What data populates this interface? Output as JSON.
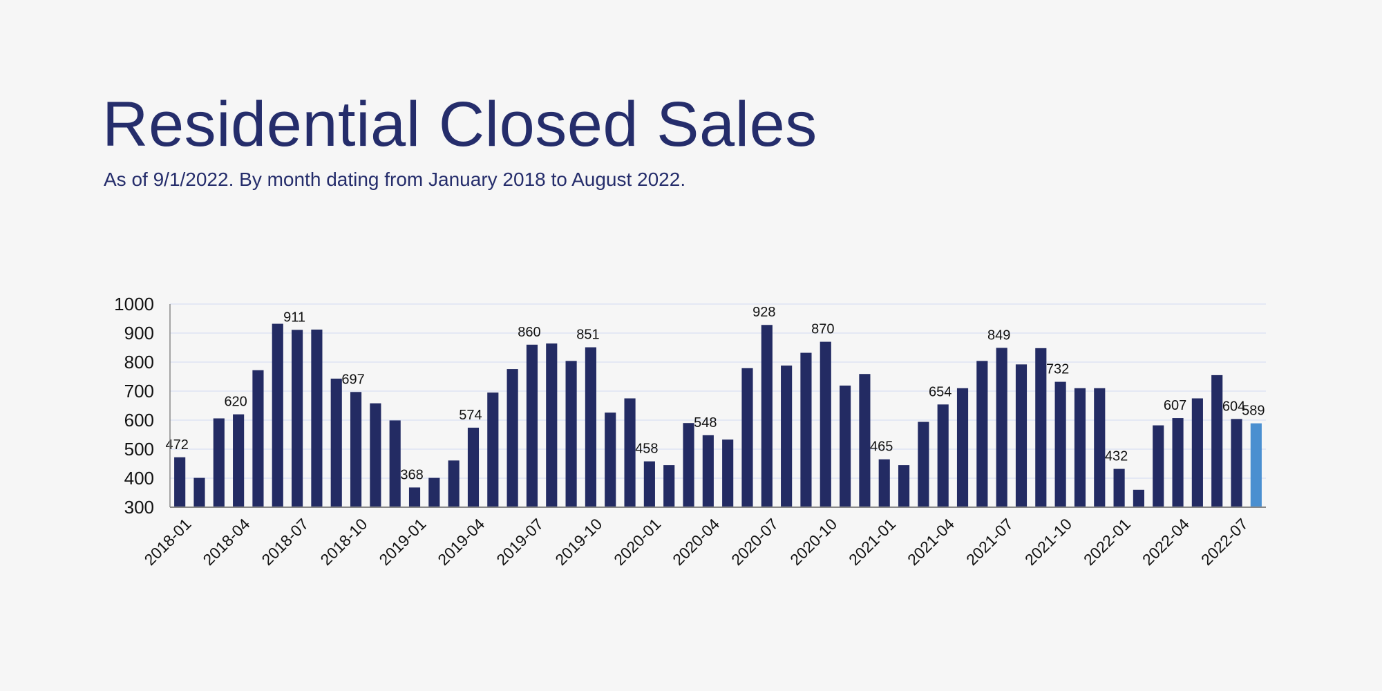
{
  "title": "Residential Closed Sales",
  "subtitle": "As of 9/1/2022. By month dating from January 2018 to August 2022.",
  "colors": {
    "bar": "#232b63",
    "highlight_bar": "#4a8fd0",
    "title": "#252d6b",
    "grid": "#dde3f3",
    "background": "#f6f6f6"
  },
  "chart_data": {
    "type": "bar",
    "title": "",
    "xlabel": "",
    "ylabel": "",
    "ylim": [
      300,
      1000
    ],
    "yticks": [
      300,
      400,
      500,
      600,
      700,
      800,
      900,
      1000
    ],
    "grid": true,
    "legend": "none",
    "categories": [
      "2018-01",
      "2018-02",
      "2018-03",
      "2018-04",
      "2018-05",
      "2018-06",
      "2018-07",
      "2018-08",
      "2018-09",
      "2018-10",
      "2018-11",
      "2018-12",
      "2019-01",
      "2019-02",
      "2019-03",
      "2019-04",
      "2019-05",
      "2019-06",
      "2019-07",
      "2019-08",
      "2019-09",
      "2019-10",
      "2019-11",
      "2019-12",
      "2020-01",
      "2020-02",
      "2020-03",
      "2020-04",
      "2020-05",
      "2020-06",
      "2020-07",
      "2020-08",
      "2020-09",
      "2020-10",
      "2020-11",
      "2020-12",
      "2021-01",
      "2021-02",
      "2021-03",
      "2021-04",
      "2021-05",
      "2021-06",
      "2021-07",
      "2021-08",
      "2021-09",
      "2021-10",
      "2021-11",
      "2021-12",
      "2022-01",
      "2022-02",
      "2022-03",
      "2022-04",
      "2022-05",
      "2022-06",
      "2022-07",
      "2022-08"
    ],
    "xtick_labels": [
      "2018-01",
      "2018-04",
      "2018-07",
      "2018-10",
      "2019-01",
      "2019-04",
      "2019-07",
      "2019-10",
      "2020-01",
      "2020-04",
      "2020-07",
      "2020-10",
      "2021-01",
      "2021-04",
      "2021-07",
      "2021-10",
      "2022-01",
      "2022-04",
      "2022-07"
    ],
    "values": [
      472,
      401,
      606,
      620,
      772,
      932,
      911,
      912,
      743,
      697,
      658,
      599,
      368,
      401,
      461,
      574,
      695,
      776,
      860,
      864,
      804,
      851,
      626,
      675,
      458,
      445,
      590,
      548,
      533,
      779,
      928,
      788,
      832,
      870,
      719,
      759,
      465,
      445,
      594,
      654,
      710,
      804,
      849,
      792,
      848,
      732,
      710,
      710,
      432,
      360,
      582,
      607,
      675,
      755,
      604,
      589
    ],
    "data_labels": {
      "2018-01": "472",
      "2018-04": "620",
      "2018-07": "911",
      "2018-10": "697",
      "2019-01": "368",
      "2019-04": "574",
      "2019-07": "860",
      "2019-10": "851",
      "2020-01": "458",
      "2020-04": "548",
      "2020-07": "928",
      "2020-10": "870",
      "2021-01": "465",
      "2021-04": "654",
      "2021-07": "849",
      "2021-10": "732",
      "2022-01": "432",
      "2022-04": "607",
      "2022-07": "604",
      "2022-08": "589"
    },
    "highlighted": "2022-08"
  }
}
